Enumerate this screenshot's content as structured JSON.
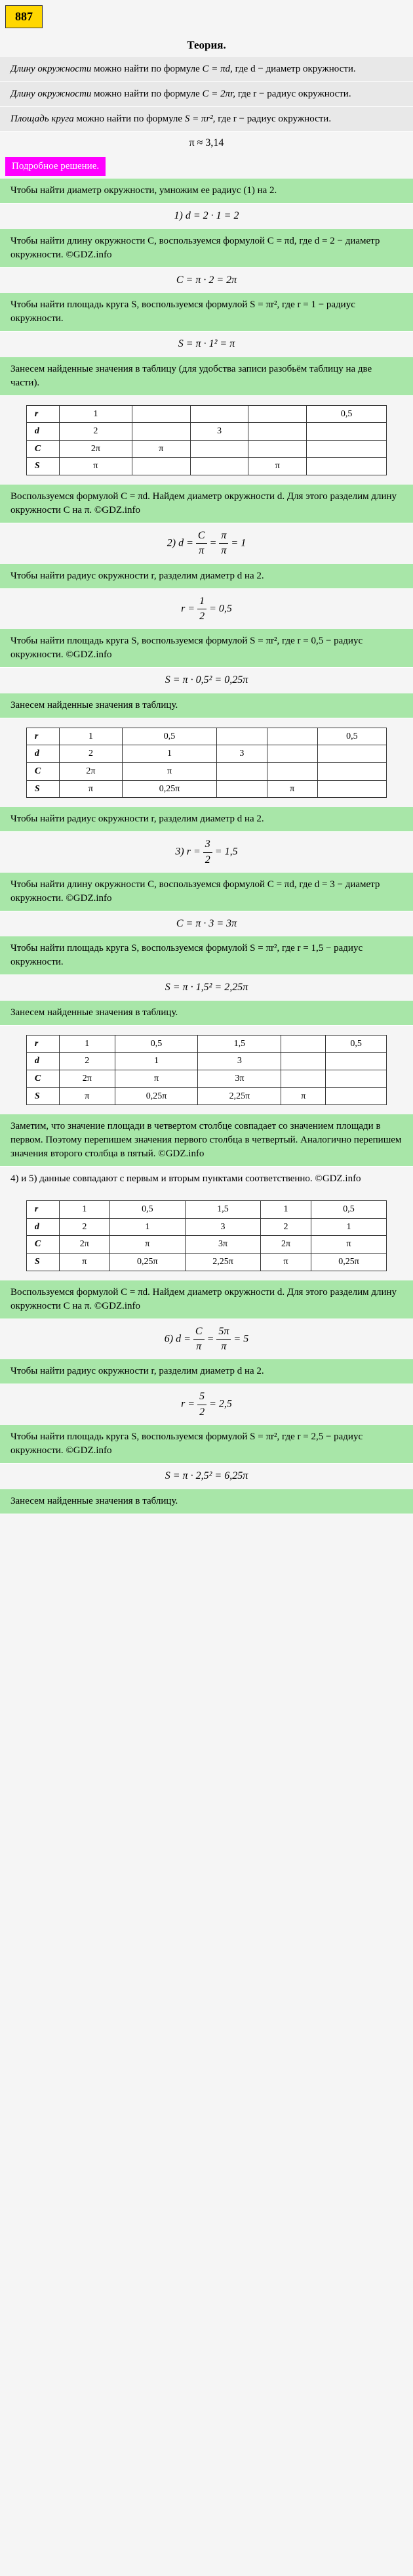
{
  "problem_number": "887",
  "theory": {
    "title": "Теория.",
    "lines": [
      {
        "prefix": "Длину окружности",
        "text": " можно найти по формуле ",
        "formula": "C = πd,",
        "suffix": " где d − диаметр окружности."
      },
      {
        "prefix": "Длину окружности",
        "text": " можно найти по формуле ",
        "formula": "C = 2πr,",
        "suffix": " где r − радиус окружности."
      },
      {
        "prefix": "Площадь круга",
        "text": " можно найти по формуле ",
        "formula": "S = πr²,",
        "suffix": " где r − радиус окружности."
      }
    ],
    "pi": "π ≈ 3,14"
  },
  "solution_header": "Подробное решение.",
  "block1": {
    "text": "Чтобы найти диаметр окружности, умножим ее радиус (1) на 2.",
    "formula": "1) d = 2 · 1 = 2"
  },
  "block2": {
    "text": "Чтобы найти длину окружности C, воспользуемся формулой C = πd, где d = 2 − диаметр окружности. ©GDZ.info",
    "formula": "C = π · 2 = 2π"
  },
  "block3": {
    "text": "Чтобы найти площадь круга S, воспользуемся формулой S = πr², где r = 1 − радиус окружности.",
    "formula": "S = π · 1² = π"
  },
  "block4": {
    "text": "Занесем найденные значения в таблицу (для удобства записи разобьём таблицу на две части)."
  },
  "table1": {
    "rows": [
      [
        "r",
        "1",
        "",
        "",
        "",
        "0,5"
      ],
      [
        "d",
        "2",
        "",
        "3",
        "",
        ""
      ],
      [
        "C",
        "2π",
        "π",
        "",
        "",
        ""
      ],
      [
        "S",
        "π",
        "",
        "",
        "π",
        ""
      ]
    ]
  },
  "block5": {
    "text": "Воспользуемся формулой C = πd. Найдем диаметр окружности d. Для этого разделим длину окружности C на π. ©GDZ.info",
    "label": "2) d = ",
    "frac_num": "C",
    "frac_den": "π",
    "eq": " = ",
    "frac2_num": "π",
    "frac2_den": "π",
    "result": " = 1"
  },
  "block6": {
    "text": "Чтобы найти радиус окружности r, разделим диаметр d на 2.",
    "label": "r = ",
    "frac_num": "1",
    "frac_den": "2",
    "result": " = 0,5"
  },
  "block7": {
    "text": "Чтобы найти площадь круга S, воспользуемся формулой S = πr², где r = 0,5 − радиус окружности. ©GDZ.info",
    "formula": "S = π · 0,5² = 0,25π"
  },
  "block8": {
    "text": "Занесем найденные значения в таблицу."
  },
  "table2": {
    "rows": [
      [
        "r",
        "1",
        "0,5",
        "",
        "",
        "0,5"
      ],
      [
        "d",
        "2",
        "1",
        "3",
        "",
        ""
      ],
      [
        "C",
        "2π",
        "π",
        "",
        "",
        ""
      ],
      [
        "S",
        "π",
        "0,25π",
        "",
        "π",
        ""
      ]
    ]
  },
  "block9": {
    "text": "Чтобы найти радиус окружности r, разделим диаметр d на 2.",
    "label": "3) r = ",
    "frac_num": "3",
    "frac_den": "2",
    "result": " = 1,5"
  },
  "block10": {
    "text": "Чтобы найти длину окружности C, воспользуемся формулой C = πd, где d = 3 − диаметр окружности. ©GDZ.info",
    "formula": "C = π · 3 = 3π"
  },
  "block11": {
    "text": "Чтобы найти площадь круга S, воспользуемся формулой S = πr², где r = 1,5 − радиус окружности.",
    "formula": "S = π · 1,5² = 2,25π"
  },
  "block12": {
    "text": "Занесем найденные значения в таблицу."
  },
  "table3": {
    "rows": [
      [
        "r",
        "1",
        "0,5",
        "1,5",
        "",
        "0,5"
      ],
      [
        "d",
        "2",
        "1",
        "3",
        "",
        ""
      ],
      [
        "C",
        "2π",
        "π",
        "3π",
        "",
        ""
      ],
      [
        "S",
        "π",
        "0,25π",
        "2,25π",
        "π",
        ""
      ]
    ]
  },
  "block13": {
    "text": "Заметим, что значение площади в четвертом столбце совпадает со значением площади в первом. Поэтому перепишем значения первого столбца в четвертый. Аналогично перепишем значения второго столбца в пятый. ©GDZ.info"
  },
  "block14": {
    "text": "4) и 5) данные совпадают с первым и вторым пунктами соответственно. ©GDZ.info"
  },
  "table4": {
    "rows": [
      [
        "r",
        "1",
        "0,5",
        "1,5",
        "1",
        "0,5"
      ],
      [
        "d",
        "2",
        "1",
        "3",
        "2",
        "1"
      ],
      [
        "C",
        "2π",
        "π",
        "3π",
        "2π",
        "π"
      ],
      [
        "S",
        "π",
        "0,25π",
        "2,25π",
        "π",
        "0,25π"
      ]
    ]
  },
  "block15": {
    "text": "Воспользуемся формулой C = πd. Найдем диаметр окружности d. Для этого разделим длину окружности C на π. ©GDZ.info",
    "label": "6) d = ",
    "frac_num": "C",
    "frac_den": "π",
    "eq": " = ",
    "frac2_num": "5π",
    "frac2_den": "π",
    "result": " = 5"
  },
  "block16": {
    "text": "Чтобы найти радиус окружности r, разделим диаметр d на 2.",
    "label": "r = ",
    "frac_num": "5",
    "frac_den": "2",
    "result": " = 2,5"
  },
  "block17": {
    "text": "Чтобы найти площадь круга S, воспользуемся формулой S = πr², где r = 2,5 − радиус окружности. ©GDZ.info",
    "formula": "S = π · 2,5² = 6,25π"
  },
  "block18": {
    "text": "Занесем найденные значения в таблицу."
  }
}
